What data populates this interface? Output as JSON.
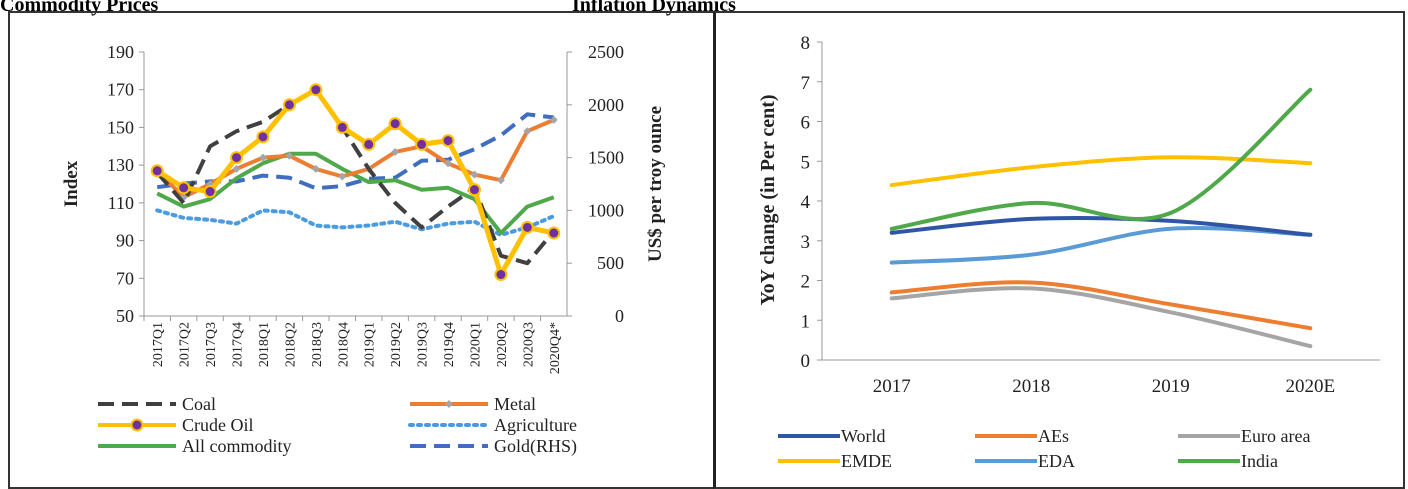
{
  "panel_titles": {
    "left": "Commodity Prices",
    "right": "Inflation Dynamics"
  },
  "chart_data": [
    {
      "type": "line",
      "title": "Commodity Prices",
      "ylabel": "Index",
      "ylabel_right": "US$ per troy ounce",
      "ylim": [
        50,
        190
      ],
      "yticks": [
        50,
        70,
        90,
        110,
        130,
        150,
        170,
        190
      ],
      "ylim_right": [
        0,
        2500
      ],
      "yticks_right": [
        0,
        500,
        1000,
        1500,
        2000,
        2500
      ],
      "categories": [
        "2017Q1",
        "2017Q2",
        "2017Q3",
        "2017Q4",
        "2018Q1",
        "2018Q2",
        "2018Q3",
        "2018Q4",
        "2019Q1",
        "2019Q2",
        "2019Q3",
        "2019Q4",
        "2020Q1",
        "2020Q2",
        "2020Q3",
        "2020Q4*"
      ],
      "legend_position": "bottom",
      "series": [
        {
          "name": "Coal",
          "color": "#404040",
          "dash": "long-dash",
          "axis": "left",
          "values": [
            126,
            110,
            140,
            148,
            153,
            162,
            170,
            150,
            128,
            110,
            97,
            108,
            118,
            82,
            78,
            95
          ]
        },
        {
          "name": "Metal",
          "color": "#ED7D31",
          "marker": "diamond",
          "axis": "left",
          "values": [
            127,
            113,
            120,
            128,
            134,
            135,
            128,
            124,
            128,
            137,
            140,
            131,
            125,
            122,
            148,
            154
          ]
        },
        {
          "name": "Crude Oil",
          "color": "#FFC000",
          "marker": "circle",
          "marker_color": "#7030A0",
          "axis": "left",
          "values": [
            127,
            118,
            116,
            134,
            145,
            162,
            170,
            150,
            141,
            152,
            141,
            143,
            117,
            72,
            97,
            94
          ]
        },
        {
          "name": "Agriculture",
          "color": "#4A9BE0",
          "dash": "dot",
          "axis": "left",
          "values": [
            106,
            102,
            101,
            99,
            106,
            105,
            98,
            97,
            98,
            100,
            96,
            99,
            100,
            93,
            97,
            103
          ]
        },
        {
          "name": "All commodity",
          "color": "#4FA84A",
          "axis": "left",
          "values": [
            115,
            108,
            112,
            123,
            131,
            136,
            136,
            128,
            121,
            122,
            117,
            118,
            112,
            94,
            108,
            113
          ]
        },
        {
          "name": "Gold(RHS)",
          "color": "#3E6DC2",
          "dash": "long-dash",
          "axis": "right",
          "values": [
            1220,
            1255,
            1275,
            1275,
            1330,
            1310,
            1210,
            1230,
            1300,
            1310,
            1470,
            1480,
            1580,
            1710,
            1910,
            1880
          ]
        }
      ]
    },
    {
      "type": "line",
      "title": "Inflation Dynamics",
      "ylabel": "YoY change (in Per cent)",
      "ylim": [
        0,
        8
      ],
      "yticks": [
        0,
        1,
        2,
        3,
        4,
        5,
        6,
        7,
        8
      ],
      "categories": [
        "2017",
        "2018",
        "2019",
        "2020E"
      ],
      "legend_position": "bottom",
      "series": [
        {
          "name": "World",
          "color": "#2F55A4",
          "values": [
            3.2,
            3.55,
            3.5,
            3.15
          ]
        },
        {
          "name": "AEs",
          "color": "#ED7D31",
          "values": [
            1.7,
            1.95,
            1.4,
            0.8
          ]
        },
        {
          "name": "Euro area",
          "color": "#A5A5A5",
          "values": [
            1.55,
            1.8,
            1.2,
            0.35
          ]
        },
        {
          "name": "EMDE",
          "color": "#FFC000",
          "values": [
            4.4,
            4.85,
            5.1,
            4.95
          ]
        },
        {
          "name": "EDA",
          "color": "#5B9BD5",
          "values": [
            2.45,
            2.65,
            3.3,
            3.15
          ]
        },
        {
          "name": "India",
          "color": "#4FA84A",
          "values": [
            3.3,
            3.95,
            3.7,
            6.8
          ]
        }
      ]
    }
  ]
}
